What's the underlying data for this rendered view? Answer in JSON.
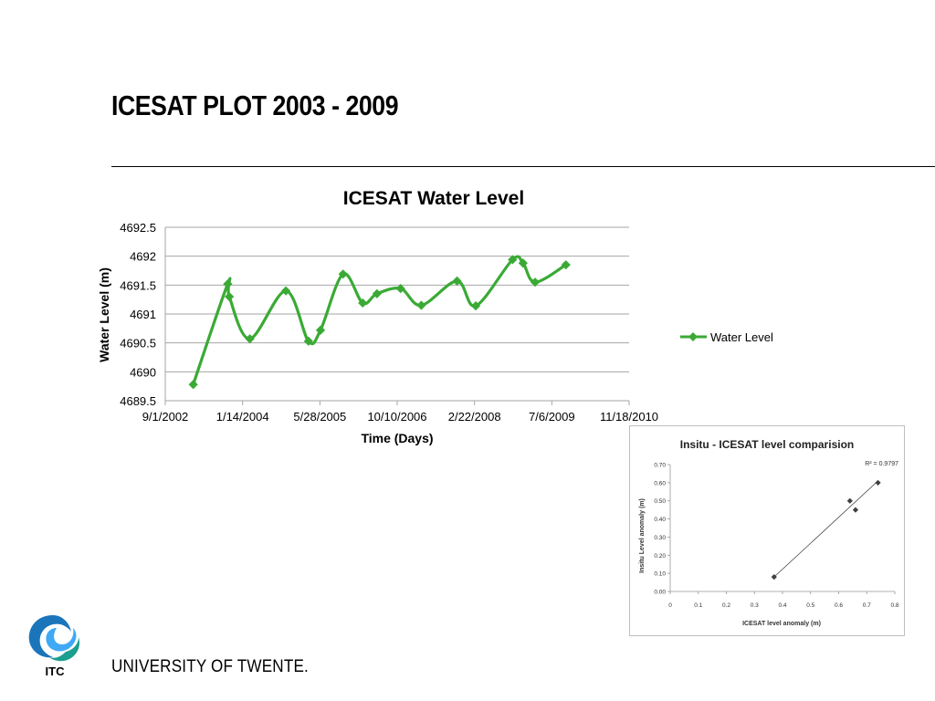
{
  "slide": {
    "title": "ICESAT PLOT 2003 - 2009",
    "university": "UNIVERSITY OF TWENTE.",
    "logo_text": "ITC"
  },
  "colors": {
    "series": "#3aaa35",
    "grid": "#a6a6a6",
    "inset_points": "#404040"
  },
  "chart_data": [
    {
      "type": "line",
      "title": "ICESAT Water Level",
      "xlabel": "Time (Days)",
      "ylabel": "Water Level (m)",
      "xticks": [
        "9/1/2002",
        "1/14/2004",
        "5/28/2005",
        "10/10/2006",
        "2/22/2008",
        "7/6/2009",
        "11/18/2010"
      ],
      "xlim": [
        "9/1/2002",
        "11/18/2010"
      ],
      "ylim": [
        4689.5,
        4692.5
      ],
      "yticks": [
        "4692.5",
        "4692",
        "4691.5",
        "4691",
        "4690.5",
        "4690",
        "4689.5"
      ],
      "grid": true,
      "smoothed": true,
      "legend_position": "right",
      "series": [
        {
          "name": "Water Level",
          "x": [
            "2003-03-01",
            "2003-10-10",
            "2003-10-20",
            "2004-03-01",
            "2004-10-20",
            "2005-03-15",
            "2005-06-01",
            "2005-10-25",
            "2006-03-01",
            "2006-06-01",
            "2006-11-01",
            "2007-03-15",
            "2007-11-01",
            "2008-03-01",
            "2008-10-25",
            "2009-01-01",
            "2009-03-20",
            "2009-10-05"
          ],
          "y": [
            4689.78,
            4691.52,
            4691.3,
            4690.57,
            4691.4,
            4690.53,
            4690.72,
            4691.69,
            4691.19,
            4691.35,
            4691.44,
            4691.15,
            4691.57,
            4691.14,
            4691.94,
            4691.88,
            4691.55,
            4691.85
          ]
        }
      ]
    },
    {
      "type": "scatter",
      "title": "Insitu - ICESAT level comparision",
      "xlabel": "ICESAT level anomaly (m)",
      "ylabel": "Insitu Level anomaly (m)",
      "xticks": [
        "0",
        "0.1",
        "0.2",
        "0.3",
        "0.4",
        "0.5",
        "0.6",
        "0.7",
        "0.8"
      ],
      "yticks": [
        "0.70",
        "0.60",
        "0.50",
        "0.40",
        "0.30",
        "0.20",
        "0.10",
        "0.00"
      ],
      "xlim": [
        0,
        0.8
      ],
      "ylim": [
        0,
        0.7
      ],
      "r2_label": "R² = 0.9797",
      "points": [
        {
          "x": 0.37,
          "y": 0.08
        },
        {
          "x": 0.64,
          "y": 0.5
        },
        {
          "x": 0.66,
          "y": 0.45
        },
        {
          "x": 0.74,
          "y": 0.6
        }
      ],
      "trendline": {
        "x": [
          0.37,
          0.74
        ],
        "y": [
          0.08,
          0.61
        ]
      }
    }
  ]
}
